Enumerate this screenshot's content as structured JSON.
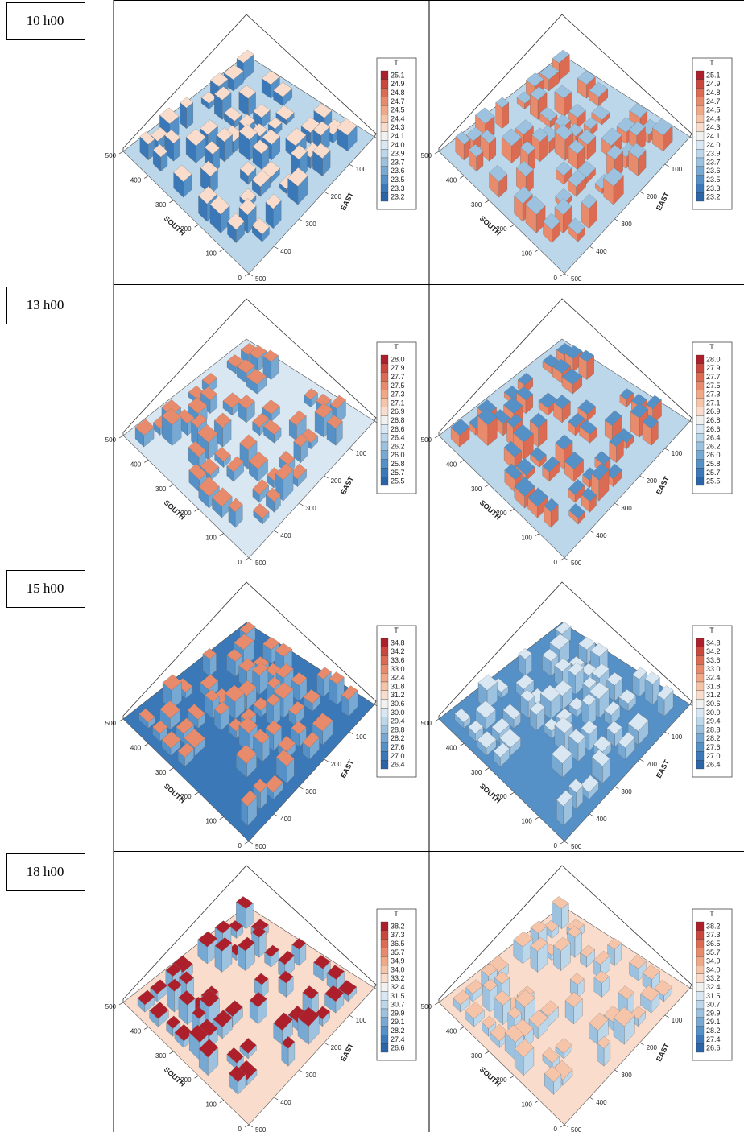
{
  "figure": {
    "rows": [
      {
        "time": "10 h00",
        "legend_title": "T",
        "legend": [
          "25.1",
          "24.9",
          "24.8",
          "24.7",
          "24.5",
          "24.4",
          "24.3",
          "24.1",
          "24.0",
          "23.9",
          "23.7",
          "23.6",
          "23.5",
          "23.3",
          "23.2"
        ]
      },
      {
        "time": "13 h00",
        "legend_title": "T",
        "legend": [
          "28.0",
          "27.9",
          "27.7",
          "27.5",
          "27.3",
          "27.1",
          "26.9",
          "26.8",
          "26.6",
          "26.4",
          "26.2",
          "26.0",
          "25.8",
          "25.7",
          "25.5"
        ]
      },
      {
        "time": "15 h00",
        "legend_title": "T",
        "legend": [
          "34.8",
          "34.2",
          "33.6",
          "33.0",
          "32.4",
          "31.8",
          "31.2",
          "30.6",
          "30.0",
          "29.4",
          "28.8",
          "28.2",
          "27.6",
          "27.0",
          "26.4"
        ]
      },
      {
        "time": "18 h00",
        "legend_title": "T",
        "legend": [
          "38.2",
          "37.3",
          "36.5",
          "35.7",
          "34.9",
          "34.0",
          "33.2",
          "32.4",
          "31.5",
          "30.7",
          "29.9",
          "29.1",
          "28.2",
          "27.4",
          "26.6"
        ]
      }
    ],
    "south_label": "SOUTH",
    "east_label": "EAST",
    "south_ticks": [
      500,
      400,
      300,
      200,
      100,
      0
    ],
    "east_ticks": [
      0,
      100,
      200,
      300,
      400,
      500
    ]
  }
}
